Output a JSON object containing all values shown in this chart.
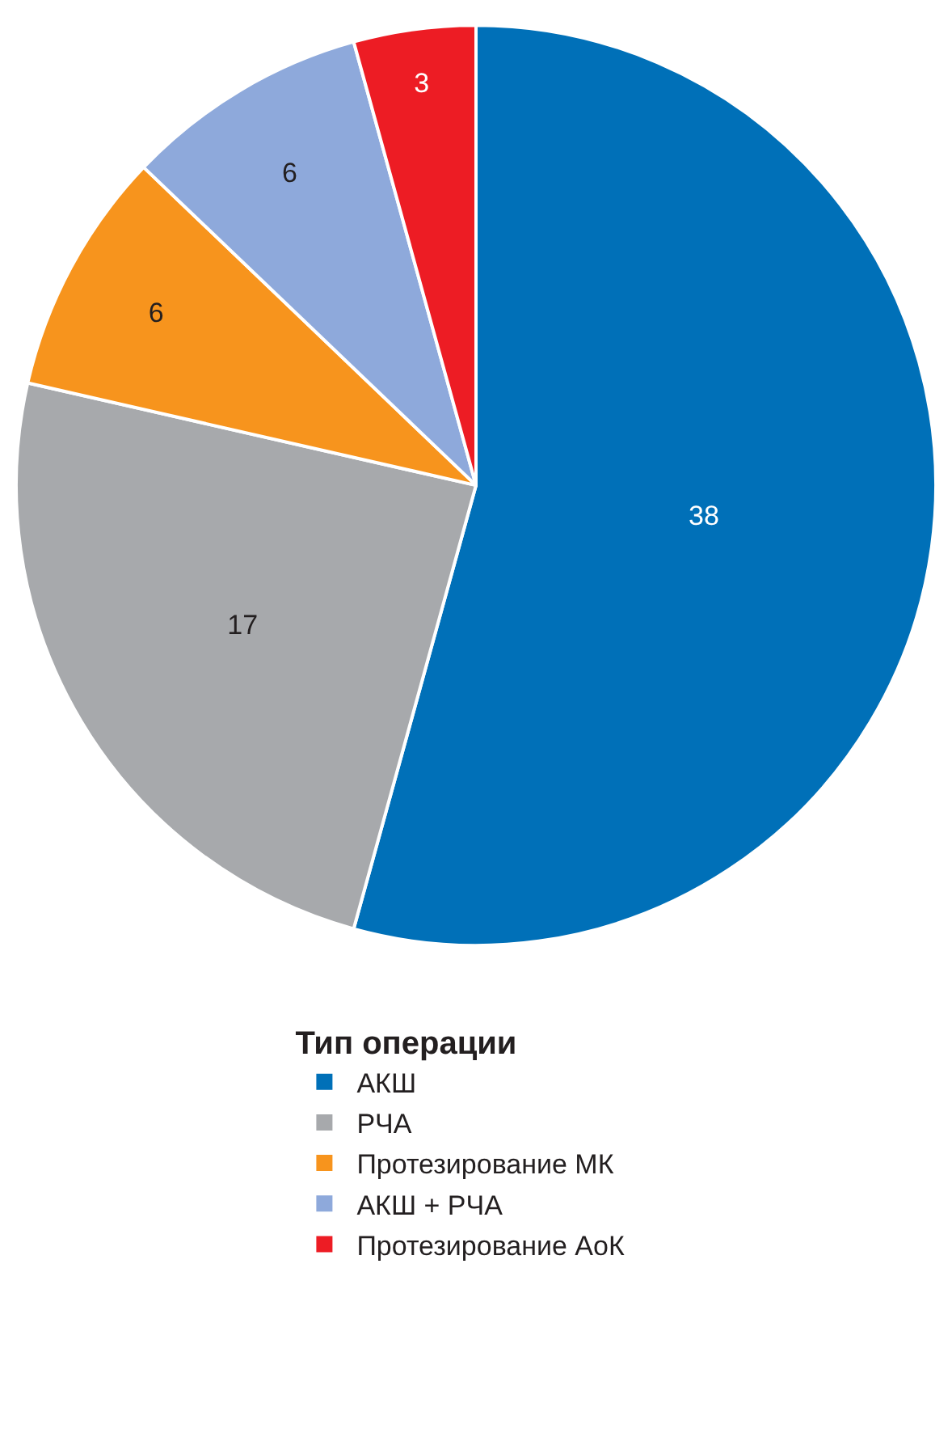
{
  "chart_data": {
    "type": "pie",
    "legend_title": "Тип операции",
    "categories": [
      "АКШ",
      "РЧА",
      "Протезирование МК",
      "АКШ + РЧА",
      "Протезирование АоК"
    ],
    "values": [
      38,
      17,
      6,
      6,
      3
    ],
    "colors": [
      "#0070b8",
      "#a7a9ac",
      "#f7941d",
      "#8ea9db",
      "#ed1c24"
    ],
    "data_labels": true,
    "legend": "bottom"
  }
}
